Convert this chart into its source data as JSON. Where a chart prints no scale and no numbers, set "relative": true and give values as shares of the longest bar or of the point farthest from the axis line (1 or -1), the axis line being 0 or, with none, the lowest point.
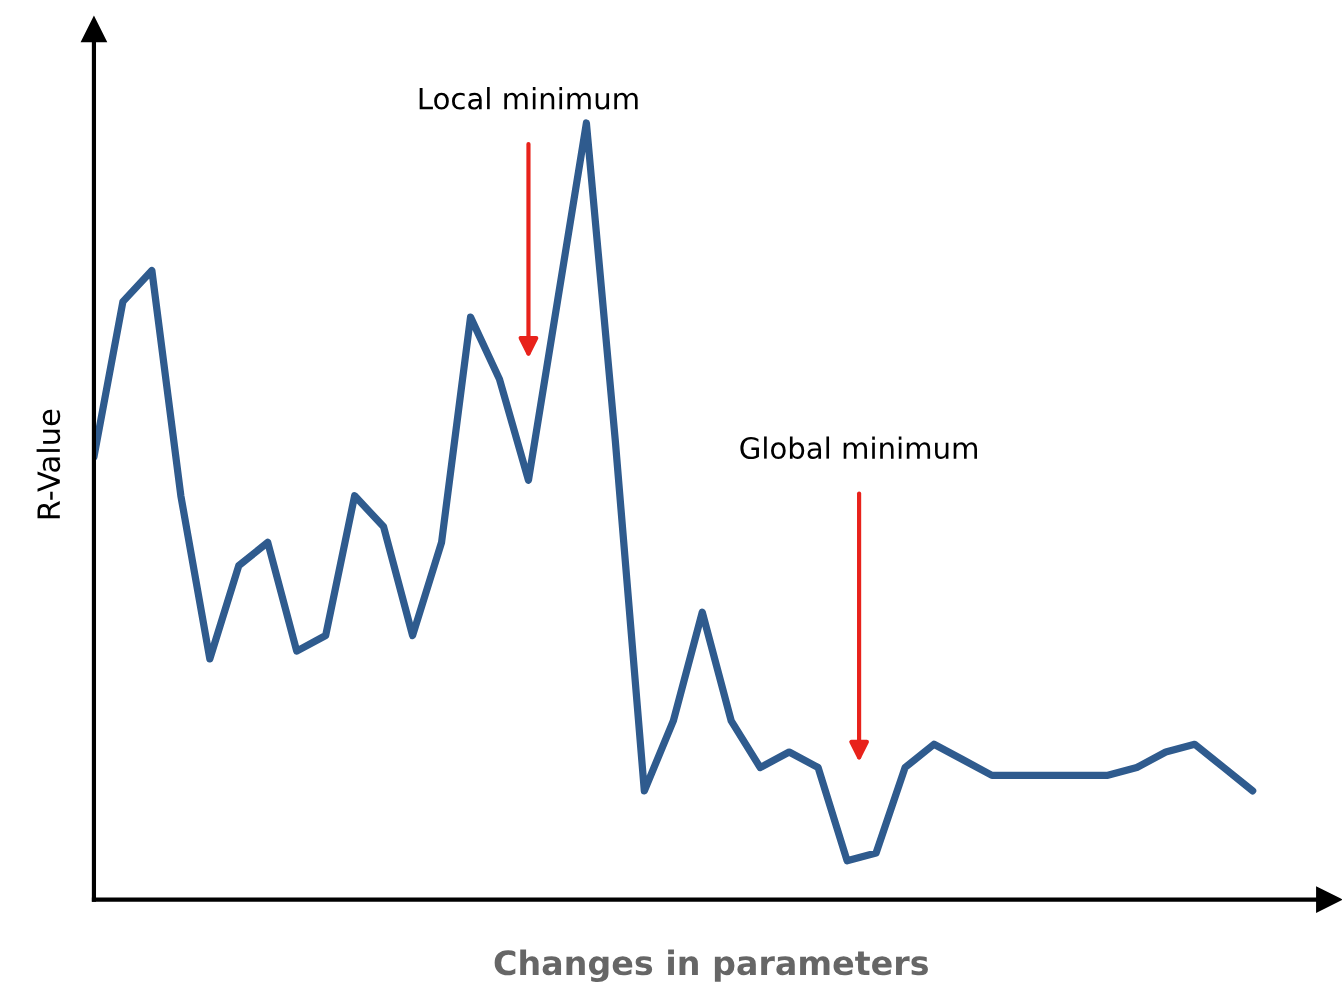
{
  "chart_data": {
    "type": "line",
    "relative": true,
    "xlabel": "Changes in parameters",
    "ylabel": "R-Value",
    "annotations": [
      "Local minimum",
      "Global minimum"
    ],
    "categories": [
      null,
      null,
      null,
      null,
      null,
      null,
      null,
      null,
      null,
      null,
      null,
      null,
      null,
      null,
      null,
      null,
      null,
      null,
      null,
      null,
      null,
      null,
      null,
      null,
      null,
      null,
      null,
      null,
      null,
      null,
      null,
      null,
      null,
      null,
      null,
      null,
      null,
      null,
      null,
      null,
      null
    ],
    "series": [
      {
        "color": "#2f5b8e",
        "values": [
          0.57,
          0.77,
          0.81,
          0.52,
          0.31,
          0.43,
          0.46,
          0.32,
          0.34,
          0.52,
          0.48,
          0.34,
          0.46,
          0.75,
          0.67,
          0.54,
          0.77,
          1.0,
          0.59,
          0.14,
          0.23,
          0.37,
          0.23,
          0.17,
          0.19,
          0.17,
          0.05,
          0.06,
          0.17,
          0.2,
          0.18,
          0.16,
          0.16,
          0.16,
          0.16,
          0.16,
          0.17,
          0.19,
          0.2,
          0.17,
          0.14
        ]
      }
    ],
    "legend": false,
    "tick_labels": false,
    "marker": "none",
    "line_style": "solid"
  }
}
